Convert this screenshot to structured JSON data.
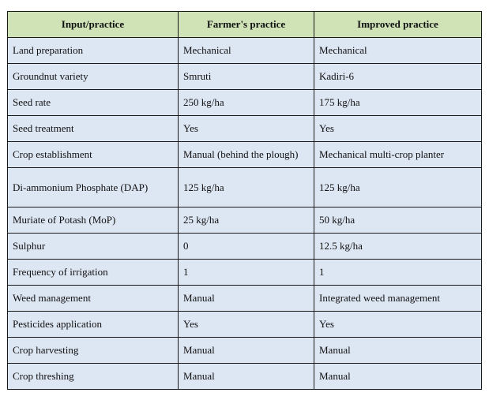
{
  "table": {
    "headers": [
      "Input/practice",
      "Farmer's practice",
      "Improved practice"
    ],
    "rows": [
      [
        "Land preparation",
        "Mechanical",
        "Mechanical"
      ],
      [
        "Groundnut variety",
        "Smruti",
        "Kadiri-6"
      ],
      [
        "Seed rate",
        "250 kg/ha",
        "175 kg/ha"
      ],
      [
        "Seed treatment",
        "Yes",
        "Yes"
      ],
      [
        "Crop establishment",
        "Manual (behind the plough)",
        "Mechanical multi-crop planter"
      ],
      [
        "Di-ammonium Phosphate  (DAP)",
        "125 kg/ha",
        "125 kg/ha"
      ],
      [
        "Muriate of Potash (MoP)",
        "25 kg/ha",
        "50 kg/ha"
      ],
      [
        "Sulphur",
        "0",
        "12.5 kg/ha"
      ],
      [
        "Frequency of irrigation",
        "1",
        "1"
      ],
      [
        "Weed management",
        "Manual",
        "Integrated weed management"
      ],
      [
        "Pesticides application",
        "Yes",
        "Yes"
      ],
      [
        "Crop harvesting",
        "Manual",
        "Manual"
      ],
      [
        "Crop threshing",
        "Manual",
        "Manual"
      ]
    ]
  },
  "colors": {
    "header_background": "#cfe3b7",
    "body_background": "#dde6f3",
    "border": "#1a1a1a"
  }
}
